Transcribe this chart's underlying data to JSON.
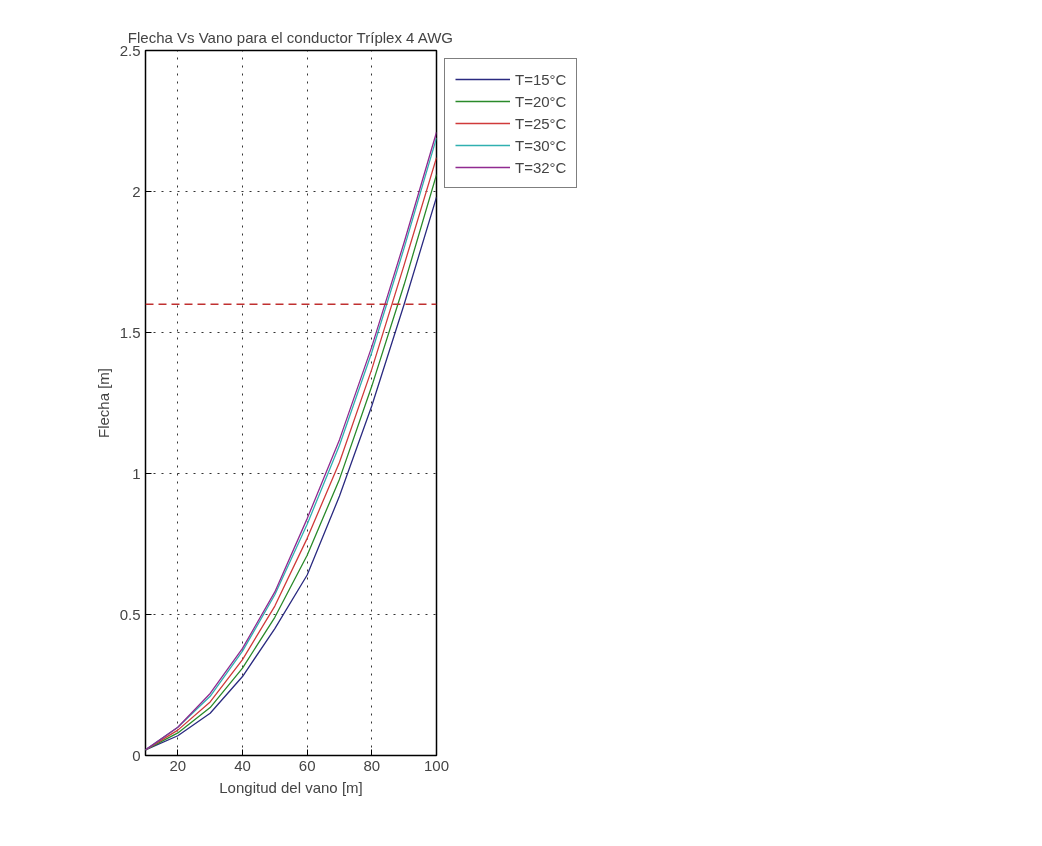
{
  "chart_data": {
    "type": "line",
    "title": "Flecha Vs Vano para el conductor Tríplex 4 AWG",
    "xlabel": "Longitud del vano [m]",
    "ylabel": "Flecha [m]",
    "x": [
      10,
      20,
      30,
      40,
      50,
      60,
      70,
      80,
      90,
      100
    ],
    "series": [
      {
        "name": "T=15°C",
        "color": "#2a2a80",
        "values": [
          0.02,
          0.07,
          0.15,
          0.28,
          0.45,
          0.64,
          0.92,
          1.24,
          1.6,
          1.98
        ]
      },
      {
        "name": "T=20°C",
        "color": "#2a8a2a",
        "values": [
          0.02,
          0.08,
          0.17,
          0.31,
          0.49,
          0.71,
          0.98,
          1.31,
          1.67,
          2.06
        ]
      },
      {
        "name": "T=25°C",
        "color": "#d03a3a",
        "values": [
          0.02,
          0.09,
          0.19,
          0.34,
          0.53,
          0.77,
          1.04,
          1.37,
          1.74,
          2.12
        ]
      },
      {
        "name": "T=30°C",
        "color": "#30b0b0",
        "values": [
          0.02,
          0.1,
          0.21,
          0.37,
          0.57,
          0.82,
          1.1,
          1.43,
          1.8,
          2.19
        ]
      },
      {
        "name": "T=32°C",
        "color": "#902a90",
        "values": [
          0.02,
          0.1,
          0.22,
          0.38,
          0.58,
          0.84,
          1.12,
          1.45,
          1.82,
          2.21
        ]
      }
    ],
    "xlim": [
      10,
      100
    ],
    "xticks": [
      20,
      40,
      60,
      80,
      100
    ],
    "ylim": [
      0,
      2.5
    ],
    "yticks": [
      0,
      0.5,
      1,
      1.5,
      2,
      2.5
    ],
    "ref_lines": [
      {
        "axis": "y",
        "value": 1.6,
        "color": "#c03030",
        "line_style": "dashed"
      }
    ],
    "grid": true,
    "legend": "top right",
    "marker": "none",
    "line_style": "solid"
  }
}
